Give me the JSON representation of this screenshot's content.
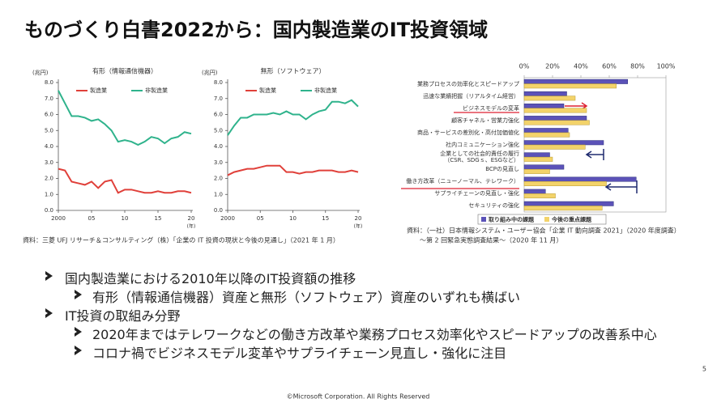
{
  "title": "ものづくり白書2022から：国内製造業のIT投資領域",
  "chart_data": [
    {
      "type": "line",
      "title": "有形（情報通信機器）",
      "y_label": "(兆円)",
      "x_label": "(年)",
      "x": [
        2000,
        2001,
        2002,
        2003,
        2004,
        2005,
        2006,
        2007,
        2008,
        2009,
        2010,
        2011,
        2012,
        2013,
        2014,
        2015,
        2016,
        2017,
        2018,
        2019,
        2020
      ],
      "xlim": [
        2000,
        2020
      ],
      "xticks": [
        2000,
        {
          "value": 2005,
          "label": "05"
        },
        {
          "value": 2010,
          "label": "10"
        },
        {
          "value": 2015,
          "label": "15"
        },
        {
          "value": 2020,
          "label": "20"
        }
      ],
      "ylim": [
        0,
        8
      ],
      "yticks": [
        {
          "value": 0,
          "label": "0.0"
        },
        {
          "value": 1,
          "label": "1.0"
        },
        {
          "value": 2,
          "label": "2.0"
        },
        {
          "value": 3,
          "label": "3.0"
        },
        {
          "value": 4,
          "label": "4.0"
        },
        {
          "value": 5,
          "label": "5.0"
        },
        {
          "value": 6,
          "label": "6.0"
        },
        {
          "value": 7,
          "label": "7.0"
        },
        {
          "value": 8,
          "label": "8.0"
        }
      ],
      "series": [
        {
          "name": "製造業",
          "color": "#e0403a",
          "values": [
            2.6,
            2.5,
            1.8,
            1.7,
            1.6,
            1.8,
            1.4,
            1.8,
            1.9,
            1.1,
            1.3,
            1.3,
            1.2,
            1.1,
            1.1,
            1.2,
            1.1,
            1.1,
            1.2,
            1.2,
            1.1
          ]
        },
        {
          "name": "非製造業",
          "color": "#2fb38c",
          "values": [
            7.5,
            6.7,
            5.9,
            5.9,
            5.8,
            5.6,
            5.7,
            5.4,
            5.0,
            4.3,
            4.4,
            4.3,
            4.1,
            4.3,
            4.6,
            4.5,
            4.2,
            4.5,
            4.6,
            4.9,
            4.8
          ]
        }
      ]
    },
    {
      "type": "line",
      "title": "無形（ソフトウェア）",
      "y_label": "(兆円)",
      "x_label": "(年)",
      "x": [
        2000,
        2001,
        2002,
        2003,
        2004,
        2005,
        2006,
        2007,
        2008,
        2009,
        2010,
        2011,
        2012,
        2013,
        2014,
        2015,
        2016,
        2017,
        2018,
        2019,
        2020
      ],
      "xlim": [
        2000,
        2020
      ],
      "xticks": [
        2000,
        {
          "value": 2005,
          "label": "05"
        },
        {
          "value": 2010,
          "label": "10"
        },
        {
          "value": 2015,
          "label": "15"
        },
        {
          "value": 2020,
          "label": "20"
        }
      ],
      "ylim": [
        0,
        8
      ],
      "yticks": [
        {
          "value": 0,
          "label": "0.0"
        },
        {
          "value": 1,
          "label": "1.0"
        },
        {
          "value": 2,
          "label": "2.0"
        },
        {
          "value": 3,
          "label": "3.0"
        },
        {
          "value": 4,
          "label": "4.0"
        },
        {
          "value": 5,
          "label": "5.0"
        },
        {
          "value": 6,
          "label": "6.0"
        },
        {
          "value": 7,
          "label": "7.0"
        },
        {
          "value": 8,
          "label": "8.0"
        }
      ],
      "series": [
        {
          "name": "製造業",
          "color": "#e0403a",
          "values": [
            2.2,
            2.4,
            2.5,
            2.6,
            2.6,
            2.7,
            2.8,
            2.8,
            2.8,
            2.4,
            2.4,
            2.3,
            2.4,
            2.4,
            2.5,
            2.5,
            2.5,
            2.4,
            2.4,
            2.5,
            2.4
          ]
        },
        {
          "name": "非製造業",
          "color": "#2fb38c",
          "values": [
            4.7,
            5.3,
            5.8,
            5.8,
            6.0,
            6.0,
            6.0,
            6.1,
            6.0,
            6.2,
            6.0,
            6.0,
            5.7,
            6.0,
            6.2,
            6.3,
            6.8,
            6.8,
            6.7,
            6.9,
            6.5
          ]
        }
      ]
    },
    {
      "type": "bar",
      "orientation": "horizontal",
      "legend": "bottom",
      "categories": [
        "業務プロセスの効率化とスピードアップ",
        "迅速な業績把握（リアルタイム経営）",
        "ビジネスモデルの変革",
        "顧客チャネル・営業力強化",
        "商品・サービスの差別化・高付加価値化",
        "社内コミュニケーション強化",
        "企業としての社会的責任の履行\n（CSR、SDGｓ、ESGなど）",
        "BCPの見直し",
        "働き方改革（ニューノーマル、テレワーク）",
        "サプライチェーンの見直し・強化",
        "セキュリティの強化"
      ],
      "xlim": [
        0,
        100
      ],
      "xticks": [
        {
          "value": 0,
          "label": "0%"
        },
        {
          "value": 20,
          "label": "20%"
        },
        {
          "value": 40,
          "label": "40%"
        },
        {
          "value": 60,
          "label": "60%"
        },
        {
          "value": 80,
          "label": "80%"
        },
        {
          "value": 100,
          "label": "100%"
        }
      ],
      "series": [
        {
          "name": "取り組み中の課題",
          "color": "#5b52b8",
          "values": [
            73,
            30,
            28,
            44,
            31,
            56,
            18,
            28,
            79,
            15,
            63
          ]
        },
        {
          "name": "今後の重点課題",
          "color": "#f3d36a",
          "values": [
            65,
            36,
            44,
            46,
            32,
            43,
            20,
            18,
            58,
            22,
            55
          ]
        }
      ]
    }
  ],
  "source_left": "資料：三菱 UFJ リサーチ＆コンサルティング（株）「企業の IT 投資の現状と今後の見通し」（2021 年 1 月）",
  "source_right": [
    "資料：（一社）日本情報システム・ユーザー協会「企業 IT 動向調査 2021」（2020 年度調査）",
    "～第 2 回緊急実態調査結果～（2020 年 11 月）"
  ],
  "bullets": [
    {
      "text": "国内製造業における2010年以降のIT投資額の推移",
      "children": [
        "有形（情報通信機器）資産と無形（ソフトウェア）資産のいずれも横ばい"
      ]
    },
    {
      "text": "IT投資の取組み分野",
      "children": [
        "2020年まではテレワークなどの働き方改革や業務プロセス効率化やスピードアップの改善系中心",
        "コロナ禍でビジネスモデル変革やサプライチェーン見直し・強化に注目"
      ]
    }
  ],
  "footer": "©Microsoft Corporation. All Rights Reserved",
  "page_number": 5
}
